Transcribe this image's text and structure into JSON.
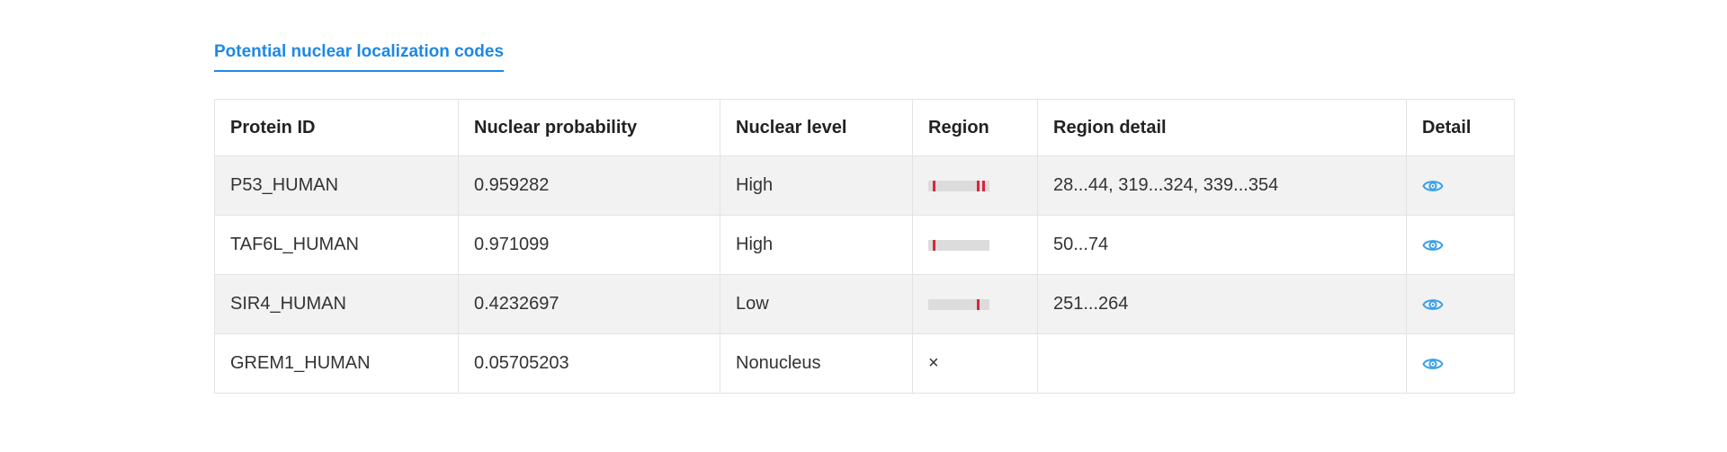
{
  "section": {
    "tab_label": "Potential nuclear localization codes"
  },
  "table": {
    "headers": [
      "Protein ID",
      "Nuclear probability",
      "Nuclear level",
      "Region",
      "Region detail",
      "Detail"
    ],
    "rows": [
      {
        "protein_id": "P53_HUMAN",
        "probability": "0.959282",
        "level": "High",
        "region": {
          "present": true,
          "marks": [
            0.08,
            0.8,
            0.88
          ]
        },
        "region_detail": "28...44, 319...324, 339...354",
        "detail_icon": "eye-icon"
      },
      {
        "protein_id": "TAF6L_HUMAN",
        "probability": "0.971099",
        "level": "High",
        "region": {
          "present": true,
          "marks": [
            0.08
          ]
        },
        "region_detail": "50...74",
        "detail_icon": "eye-icon"
      },
      {
        "protein_id": "SIR4_HUMAN",
        "probability": "0.4232697",
        "level": "Low",
        "region": {
          "present": true,
          "marks": [
            0.8
          ]
        },
        "region_detail": "251...264",
        "detail_icon": "eye-icon"
      },
      {
        "protein_id": "GREM1_HUMAN",
        "probability": "0.05705203",
        "level": "Nonucleus",
        "region": {
          "present": false,
          "none_symbol": "×"
        },
        "region_detail": "",
        "detail_icon": "eye-icon"
      }
    ]
  },
  "colors": {
    "accent": "#1e88e5",
    "region_mark": "#d7263d",
    "region_track": "#dcdcdc",
    "icon": "#3aa0e8"
  }
}
